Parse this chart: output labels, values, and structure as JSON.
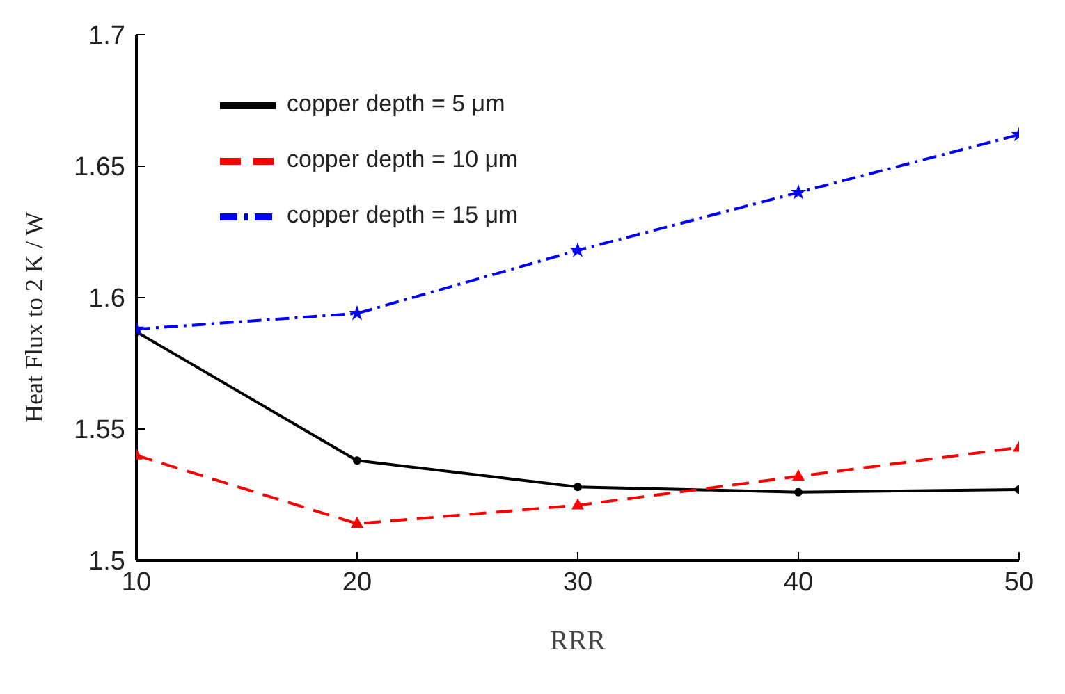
{
  "chart_data": {
    "type": "line",
    "xlabel": "RRR",
    "ylabel": "Heat Flux to 2 K / W",
    "x": [
      10,
      20,
      30,
      40,
      50
    ],
    "series": [
      {
        "name": "copper depth = 5 μm",
        "color": "#000000",
        "marker": "circle",
        "line_style": "solid",
        "values": [
          1.587,
          1.538,
          1.528,
          1.526,
          1.527
        ]
      },
      {
        "name": "copper depth = 10 μm",
        "color": "#ff0000",
        "marker": "triangle",
        "line_style": "dashed",
        "values": [
          1.54,
          1.514,
          1.521,
          1.532,
          1.543
        ]
      },
      {
        "name": "copper depth = 15 μm",
        "color": "#0000ff",
        "marker": "star",
        "line_style": "dashdot",
        "values": [
          1.588,
          1.594,
          1.618,
          1.64,
          1.662
        ]
      }
    ],
    "xlim": [
      10,
      50
    ],
    "xticks": [
      10,
      20,
      30,
      40,
      50
    ],
    "ylim": [
      1.5,
      1.7
    ],
    "yticks": [
      1.5,
      1.55,
      1.6,
      1.65,
      1.7
    ],
    "grid": false,
    "legend": "top left"
  }
}
